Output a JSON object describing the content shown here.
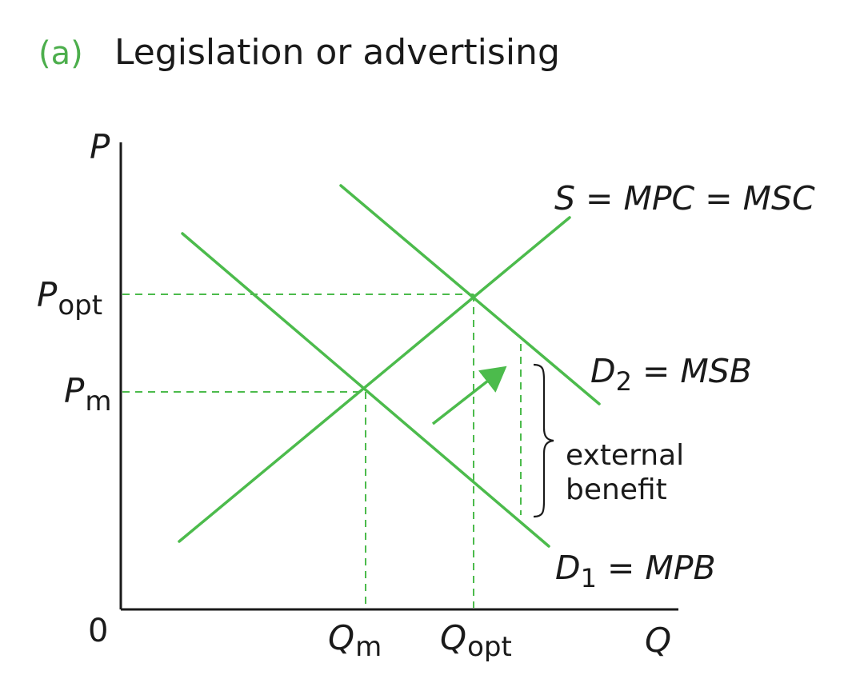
{
  "header": {
    "tag": "(a)",
    "title": "Legislation or advertising"
  },
  "axes": {
    "y_letter": "P",
    "x_letter": "Q",
    "origin": "0"
  },
  "price_labels": {
    "p_opt_main": "P",
    "p_opt_sub": "opt",
    "p_m_main": "P",
    "p_m_sub": "m"
  },
  "quantity_labels": {
    "q_m_main": "Q",
    "q_m_sub": "m",
    "q_opt_main": "Q",
    "q_opt_sub": "opt"
  },
  "curves": {
    "supply": "S = MPC = MSC",
    "d2_main": "D",
    "d2_sub": "2",
    "d2_rest": " = MSB",
    "d1_main": "D",
    "d1_sub": "1",
    "d1_rest": " = MPB"
  },
  "annotation": {
    "line1": "external",
    "line2": "benefit"
  },
  "colors": {
    "accent": "#4cbb4c",
    "title_tag": "#4cae4c",
    "text": "#1a1a1a"
  }
}
